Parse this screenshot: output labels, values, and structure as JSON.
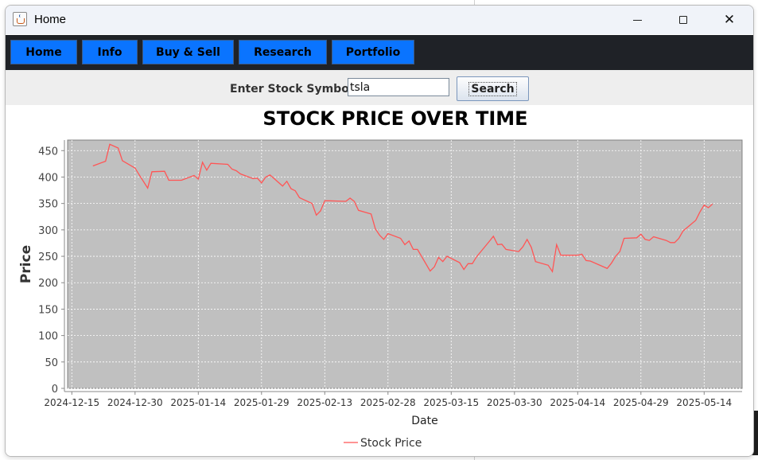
{
  "window": {
    "title": "Home",
    "icon": "java-cup-icon"
  },
  "nav": {
    "items": [
      {
        "label": "Home"
      },
      {
        "label": "Info"
      },
      {
        "label": "Buy & Sell"
      },
      {
        "label": "Research"
      },
      {
        "label": "Portfolio"
      }
    ],
    "button_color": "#0a74ff",
    "bar_color": "#1f2227"
  },
  "search": {
    "label": "Enter Stock Symbol:",
    "value": "tsla",
    "button_label": "Search"
  },
  "chart_data": {
    "type": "line",
    "title": "STOCK PRICE OVER TIME",
    "xlabel": "Date",
    "ylabel": "Price",
    "ylim": [
      0,
      470
    ],
    "grid": true,
    "plot_background": "#c0c0c0",
    "legend_position": "bottom",
    "y_ticks": [
      0,
      50,
      100,
      150,
      200,
      250,
      300,
      350,
      400,
      450
    ],
    "x_ticks": [
      "2024-12-15",
      "2024-12-30",
      "2025-01-14",
      "2025-01-29",
      "2025-02-13",
      "2025-02-28",
      "2025-03-15",
      "2025-03-30",
      "2025-04-14",
      "2025-04-29",
      "2025-05-14"
    ],
    "x_range": [
      "2024-12-14",
      "2025-05-23"
    ],
    "series": [
      {
        "name": "Stock Price",
        "color": "#ff5555",
        "x": [
          "2024-12-20",
          "2024-12-23",
          "2024-12-24",
          "2024-12-26",
          "2024-12-27",
          "2024-12-30",
          "2024-12-31",
          "2025-01-02",
          "2025-01-03",
          "2025-01-06",
          "2025-01-07",
          "2025-01-08",
          "2025-01-10",
          "2025-01-13",
          "2025-01-14",
          "2025-01-15",
          "2025-01-16",
          "2025-01-17",
          "2025-01-21",
          "2025-01-22",
          "2025-01-23",
          "2025-01-24",
          "2025-01-27",
          "2025-01-28",
          "2025-01-29",
          "2025-01-30",
          "2025-01-31",
          "2025-02-03",
          "2025-02-04",
          "2025-02-05",
          "2025-02-06",
          "2025-02-07",
          "2025-02-10",
          "2025-02-11",
          "2025-02-12",
          "2025-02-13",
          "2025-02-14",
          "2025-02-18",
          "2025-02-19",
          "2025-02-20",
          "2025-02-21",
          "2025-02-24",
          "2025-02-25",
          "2025-02-26",
          "2025-02-27",
          "2025-02-28",
          "2025-03-03",
          "2025-03-04",
          "2025-03-05",
          "2025-03-06",
          "2025-03-07",
          "2025-03-10",
          "2025-03-11",
          "2025-03-12",
          "2025-03-13",
          "2025-03-14",
          "2025-03-17",
          "2025-03-18",
          "2025-03-19",
          "2025-03-20",
          "2025-03-21",
          "2025-03-24",
          "2025-03-25",
          "2025-03-26",
          "2025-03-27",
          "2025-03-28",
          "2025-03-31",
          "2025-04-01",
          "2025-04-02",
          "2025-04-03",
          "2025-04-04",
          "2025-04-07",
          "2025-04-08",
          "2025-04-09",
          "2025-04-10",
          "2025-04-11",
          "2025-04-14",
          "2025-04-15",
          "2025-04-16",
          "2025-04-17",
          "2025-04-21",
          "2025-04-22",
          "2025-04-23",
          "2025-04-24",
          "2025-04-25",
          "2025-04-28",
          "2025-04-29",
          "2025-04-30",
          "2025-05-01",
          "2025-05-02",
          "2025-05-05",
          "2025-05-06",
          "2025-05-07",
          "2025-05-08",
          "2025-05-09",
          "2025-05-12",
          "2025-05-13",
          "2025-05-14",
          "2025-05-15",
          "2025-05-16"
        ],
        "values": [
          421,
          430,
          462,
          455,
          431,
          417,
          404,
          379,
          410,
          411,
          394,
          394,
          394,
          403,
          396,
          428,
          413,
          426,
          424,
          415,
          412,
          406,
          397,
          398,
          389,
          400,
          404,
          383,
          392,
          378,
          374,
          361,
          350,
          328,
          336,
          355,
          355,
          354,
          360,
          354,
          337,
          330,
          302,
          290,
          282,
          293,
          284,
          272,
          279,
          263,
          263,
          222,
          230,
          248,
          240,
          250,
          238,
          225,
          236,
          236,
          249,
          278,
          288,
          272,
          273,
          263,
          259,
          268,
          282,
          267,
          240,
          233,
          221,
          272,
          252,
          252,
          252,
          254,
          242,
          241,
          227,
          237,
          250,
          259,
          284,
          285,
          292,
          282,
          280,
          287,
          280,
          276,
          276,
          284,
          298,
          318,
          334,
          347,
          342,
          349
        ]
      }
    ]
  }
}
